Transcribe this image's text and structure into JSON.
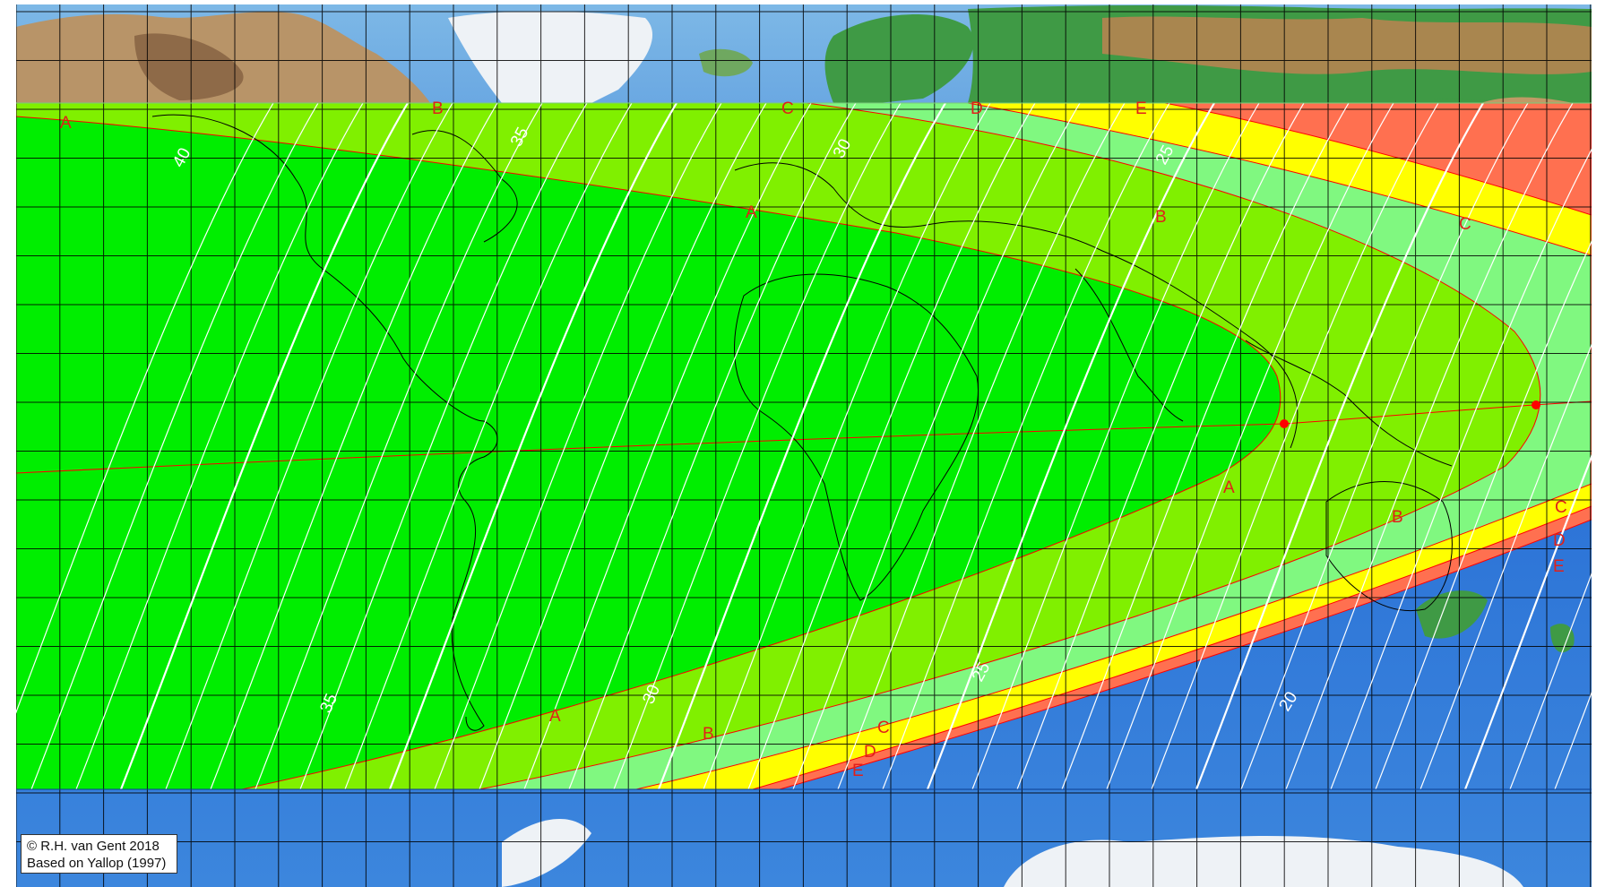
{
  "map": {
    "projection": "equirectangular",
    "colors": {
      "ocean_deep": "#1f63c9",
      "ocean_mid": "#3f8be0",
      "ocean_shallow": "#8fc4ea",
      "land_arctic": "#c7a071",
      "land_green": "#3f9a45",
      "ice": "#eef2f6",
      "zone_A": "#00ee00",
      "zone_B": "#80f000",
      "zone_C": "#80f880",
      "zone_D": "#ffff00",
      "zone_E": "#ff7050",
      "zone_boundary": "#ff0000",
      "age_line": "#ffffff",
      "grid": "#000000",
      "coastline": "#000000"
    },
    "zone_labels": [
      "A",
      "B",
      "C",
      "D",
      "E"
    ],
    "age_contour_labels": [
      "40",
      "35",
      "30",
      "25",
      "20"
    ]
  },
  "credit": {
    "line1": "© R.H. van Gent 2018",
    "line2": "Based on Yallop (1997)"
  }
}
